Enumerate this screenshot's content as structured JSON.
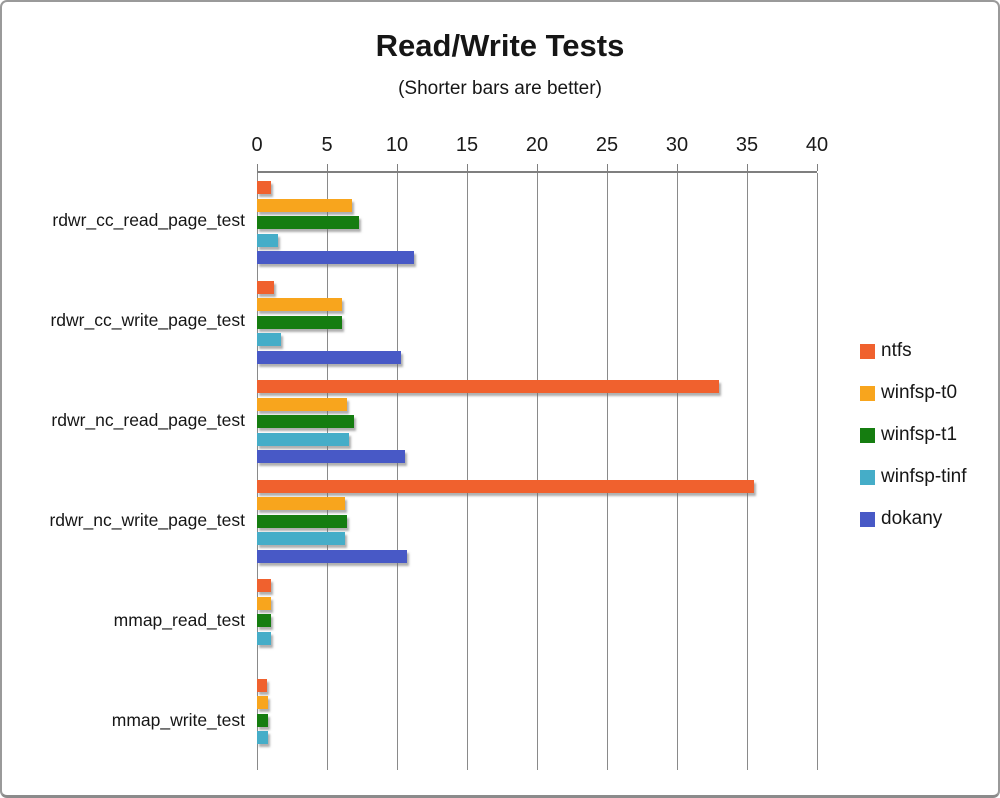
{
  "title": "Read/Write Tests",
  "subtitle": "(Shorter bars are better)",
  "chart_data": {
    "type": "bar",
    "orientation": "horizontal",
    "title": "Read/Write Tests",
    "subtitle": "(Shorter bars are better)",
    "categories": [
      "rdwr_cc_read_page_test",
      "rdwr_cc_write_page_test",
      "rdwr_nc_read_page_test",
      "rdwr_nc_write_page_test",
      "mmap_read_test",
      "mmap_write_test"
    ],
    "series": [
      {
        "name": "ntfs",
        "color": "#F0612E",
        "values": [
          1.0,
          1.2,
          33.0,
          35.5,
          1.0,
          0.7
        ]
      },
      {
        "name": "winfsp-t0",
        "color": "#F8A51D",
        "values": [
          6.8,
          6.1,
          6.4,
          6.3,
          1.0,
          0.75
        ]
      },
      {
        "name": "winfsp-t1",
        "color": "#157D10",
        "values": [
          7.3,
          6.1,
          6.9,
          6.4,
          1.0,
          0.8
        ]
      },
      {
        "name": "winfsp-tinf",
        "color": "#45ADC8",
        "values": [
          1.5,
          1.7,
          6.6,
          6.3,
          1.0,
          0.75
        ]
      },
      {
        "name": "dokany",
        "color": "#4859C6",
        "values": [
          11.2,
          10.3,
          10.6,
          10.7,
          0,
          0
        ]
      }
    ],
    "x_axis": {
      "min": 0,
      "max": 40,
      "tick_interval": 5,
      "tick_labels": [
        "0",
        "5",
        "10",
        "15",
        "20",
        "25",
        "30",
        "35",
        "40"
      ]
    },
    "legend_position": "right",
    "grid": true,
    "grid_color": "#8a8a8a",
    "frame_border_color": "#9a9a9a"
  }
}
